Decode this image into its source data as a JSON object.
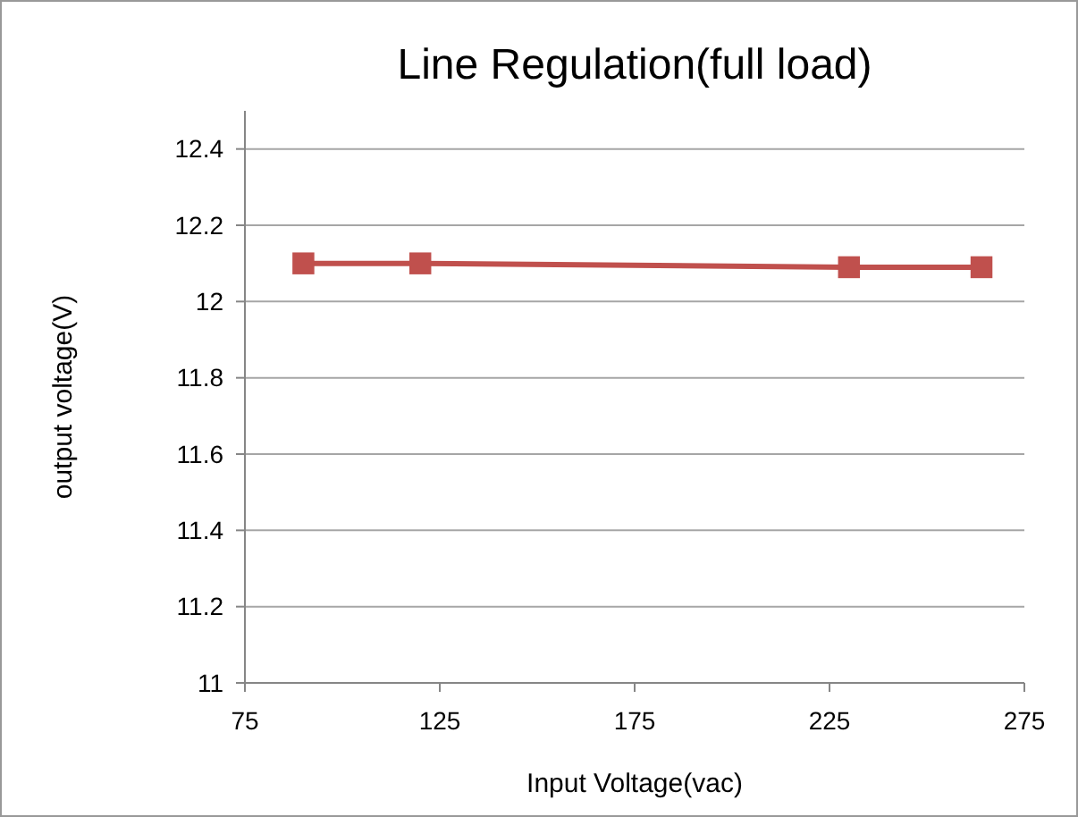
{
  "chart_data": {
    "type": "line",
    "title": "Line Regulation(full load)",
    "xlabel": "Input Voltage(vac)",
    "ylabel": "output voltage(V)",
    "x": [
      90,
      120,
      230,
      264
    ],
    "series": [
      {
        "color": "#c0504d",
        "values": [
          12.1,
          12.1,
          12.09,
          12.09
        ]
      }
    ],
    "xlim": [
      75,
      275
    ],
    "xticks": [
      75,
      125,
      175,
      225,
      275
    ],
    "ylim": [
      11,
      12.5
    ],
    "yticks": [
      11,
      11.2,
      11.4,
      11.6,
      11.8,
      12,
      12.2,
      12.4
    ],
    "grid": "y",
    "marker": "square"
  }
}
